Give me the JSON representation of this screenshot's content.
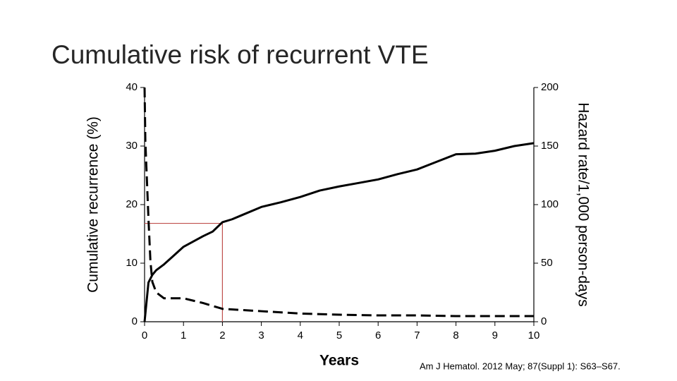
{
  "chart_data": {
    "type": "line",
    "title": "Cumulative risk of recurrent VTE",
    "source": "Am J Hematol. 2012 May; 87(Suppl 1): S63–S67.",
    "x_label": "Years",
    "y_label": "Cumulative recurrence (%)",
    "y2_label": "Hazard rate/1,000 person-days",
    "xlim": [
      0,
      10
    ],
    "xticks": [
      0,
      1,
      2,
      3,
      4,
      5,
      6,
      7,
      8,
      9,
      10
    ],
    "ylim": [
      0,
      40
    ],
    "yticks": [
      0,
      10,
      20,
      30,
      40
    ],
    "y2lim": [
      0,
      200
    ],
    "y2ticks": [
      0,
      50,
      100,
      150,
      200
    ],
    "series": [
      {
        "color": "#000000",
        "dash": false,
        "x": [
          0,
          0.1,
          0.2,
          0.3,
          0.5,
          0.75,
          1,
          1.25,
          1.5,
          1.75,
          2,
          2.25,
          2.5,
          3,
          3.5,
          4,
          4.5,
          5,
          5.5,
          6,
          6.5,
          7,
          7.5,
          8,
          8.5,
          9,
          9.5,
          10
        ],
        "values": [
          0,
          6.7,
          8,
          8.8,
          9.8,
          11.3,
          12.8,
          13.7,
          14.6,
          15.4,
          17,
          17.5,
          18.2,
          19.6,
          20.4,
          21.3,
          22.4,
          23.1,
          23.7,
          24.3,
          25.2,
          26,
          27.3,
          28.6,
          28.7,
          29.2,
          30,
          30.5
        ]
      },
      {
        "color": "#000000",
        "dash": true,
        "axis": "y2",
        "x": [
          0,
          0.02,
          0.1,
          0.15,
          0.2,
          0.3,
          0.5,
          1,
          1.5,
          2,
          3,
          4,
          5,
          6,
          7,
          8,
          9,
          10
        ],
        "values": [
          200,
          154,
          88,
          52,
          34,
          25,
          20,
          20,
          16,
          11,
          9,
          7,
          6,
          5.4,
          5.4,
          4.8,
          4.8,
          4.8
        ]
      }
    ],
    "highlight": {
      "x": 2,
      "y": 16.8,
      "color": "#c0504d"
    }
  }
}
